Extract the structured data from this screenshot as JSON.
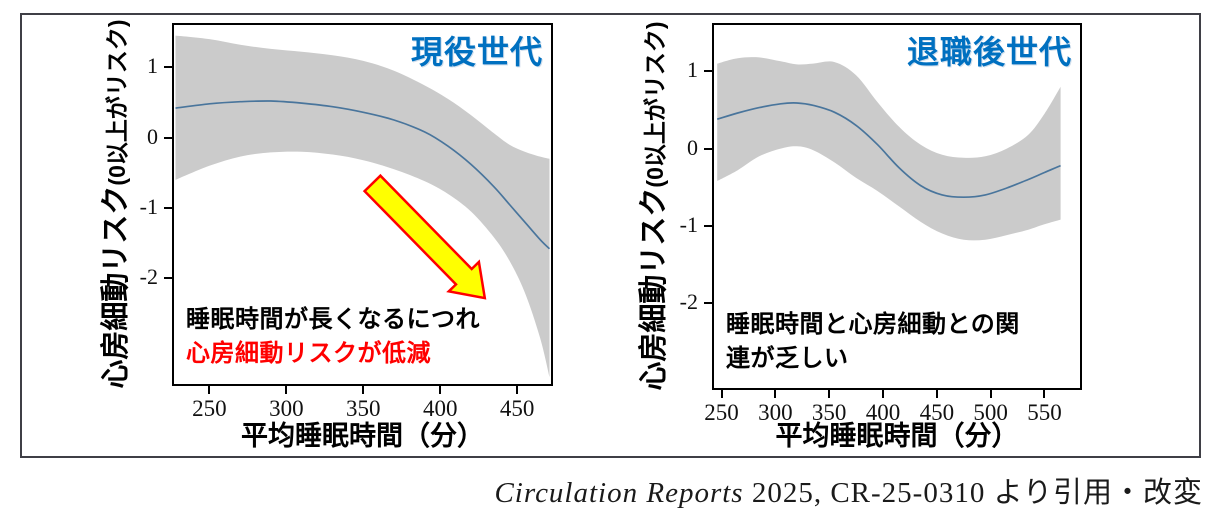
{
  "caption": {
    "journal": "Circulation Reports",
    "rest": " 2025, CR-25-0310 より引用・改変"
  },
  "chart_data": [
    {
      "type": "line",
      "panel": "working-generation",
      "title": "現役世代",
      "title_color": "#0070C0",
      "xlabel": "平均睡眠時間（分）",
      "ylabel_main": "心房細動リスク",
      "ylabel_sub": "(0以上がリスク)",
      "xlim": [
        227,
        472
      ],
      "ylim": [
        -3.5,
        1.6
      ],
      "xticks": [
        250,
        300,
        350,
        400,
        450
      ],
      "yticks": [
        1,
        0,
        -1,
        -2
      ],
      "grid": false,
      "legend": "none",
      "line_color": "#49759c",
      "band_color": "#cbcbcb",
      "series": [
        {
          "name": "smoothed-risk-estimate",
          "x": [
            228,
            250,
            270,
            290,
            310,
            330,
            350,
            370,
            390,
            405,
            420,
            435,
            445,
            455,
            465,
            471
          ],
          "y": [
            0.42,
            0.48,
            0.51,
            0.52,
            0.49,
            0.44,
            0.36,
            0.25,
            0.08,
            -0.12,
            -0.38,
            -0.7,
            -0.95,
            -1.2,
            -1.45,
            -1.58
          ]
        }
      ],
      "band": {
        "name": "confidence-band",
        "x": [
          228,
          250,
          270,
          290,
          310,
          330,
          350,
          370,
          390,
          405,
          420,
          435,
          445,
          455,
          465,
          471
        ],
        "upper": [
          1.45,
          1.4,
          1.32,
          1.26,
          1.22,
          1.17,
          1.09,
          0.95,
          0.74,
          0.55,
          0.32,
          0.06,
          -0.1,
          -0.2,
          -0.27,
          -0.3
        ],
        "lower": [
          -0.6,
          -0.4,
          -0.27,
          -0.21,
          -0.2,
          -0.24,
          -0.32,
          -0.45,
          -0.62,
          -0.8,
          -1.05,
          -1.42,
          -1.75,
          -2.2,
          -2.85,
          -3.4
        ]
      },
      "annotations": [
        {
          "text": "睡眠時間が長くなるにつれ",
          "color": "#000000"
        },
        {
          "text": "心房細動リスクが低減",
          "color": "#ff0000"
        }
      ],
      "arrow": {
        "from_xy": [
          356,
          -0.65
        ],
        "to_xy": [
          429,
          -2.28
        ],
        "fill": "#ffff00",
        "stroke": "#ff0000"
      }
    },
    {
      "type": "line",
      "panel": "retired-generation",
      "title": "退職後世代",
      "title_color": "#0070C0",
      "xlabel": "平均睡眠時間（分）",
      "ylabel_main": "心房細動リスク",
      "ylabel_sub": "(0以上がリスク)",
      "xlim": [
        243,
        583
      ],
      "ylim": [
        -3.1,
        1.6
      ],
      "xticks": [
        250,
        300,
        350,
        400,
        450,
        500,
        550
      ],
      "yticks": [
        1,
        0,
        -1,
        -2
      ],
      "grid": false,
      "legend": "none",
      "line_color": "#49759c",
      "band_color": "#cbcbcb",
      "series": [
        {
          "name": "smoothed-risk-estimate",
          "x": [
            246,
            265,
            285,
            305,
            320,
            335,
            355,
            375,
            395,
            415,
            435,
            455,
            475,
            495,
            515,
            535,
            550,
            565
          ],
          "y": [
            0.38,
            0.46,
            0.53,
            0.58,
            0.59,
            0.56,
            0.47,
            0.3,
            0.05,
            -0.25,
            -0.48,
            -0.6,
            -0.63,
            -0.6,
            -0.51,
            -0.4,
            -0.31,
            -0.22
          ]
        }
      ],
      "band": {
        "name": "confidence-band",
        "x": [
          246,
          265,
          285,
          305,
          320,
          335,
          355,
          375,
          395,
          415,
          435,
          455,
          475,
          495,
          515,
          535,
          550,
          565
        ],
        "upper": [
          1.1,
          1.17,
          1.18,
          1.13,
          1.09,
          1.1,
          1.12,
          0.95,
          0.6,
          0.28,
          0.05,
          -0.08,
          -0.12,
          -0.1,
          0.0,
          0.18,
          0.45,
          0.8
        ],
        "lower": [
          -0.42,
          -0.28,
          -0.1,
          0.0,
          0.03,
          -0.02,
          -0.18,
          -0.38,
          -0.55,
          -0.75,
          -0.95,
          -1.1,
          -1.18,
          -1.18,
          -1.12,
          -1.05,
          -0.98,
          -0.92
        ]
      },
      "annotations": [
        {
          "text": "睡眠時間と心房細動との関",
          "color": "#000000"
        },
        {
          "text": "連が乏しい",
          "color": "#000000"
        }
      ],
      "arrow": null
    }
  ]
}
